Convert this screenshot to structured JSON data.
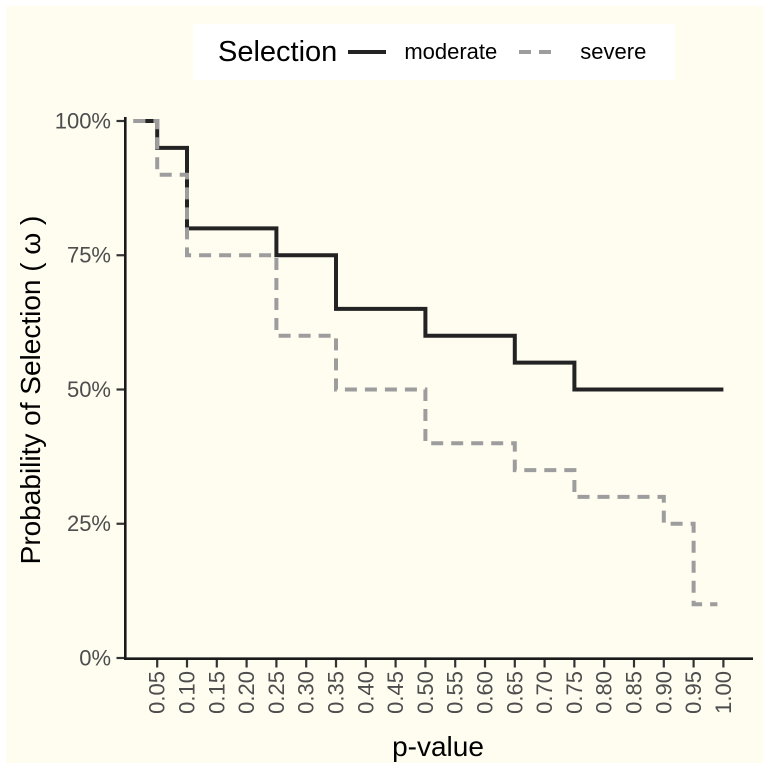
{
  "figure": {
    "page_background": "#FFFFFF",
    "plot_background": "#FFFCF0",
    "legend_background": "#FFFFFF",
    "axis_line_color": "#1A1A1A",
    "tick_color": "#333333",
    "tick_label_color": "#4D4D4D"
  },
  "legend": {
    "title": "Selection",
    "items": [
      {
        "label": "moderate",
        "style": "solid",
        "color": "#232323"
      },
      {
        "label": "severe",
        "style": "dashed",
        "color": "#9D9D9D"
      }
    ]
  },
  "axes": {
    "x_title": "p-value",
    "y_title": "Probability of Selection ( ω )"
  },
  "chart_data": {
    "type": "line",
    "subtype": "step",
    "title": "",
    "xlabel": "p-value",
    "ylabel": "Probability of Selection ( ω )",
    "legend_title": "Selection",
    "legend_position": "top",
    "grid": false,
    "xlim": [
      0.01,
      1.0
    ],
    "ylim": [
      0,
      1
    ],
    "x_ticks": [
      {
        "v": 0.05,
        "label": "0.05"
      },
      {
        "v": 0.1,
        "label": "0.10"
      },
      {
        "v": 0.15,
        "label": "0.15"
      },
      {
        "v": 0.2,
        "label": "0.20"
      },
      {
        "v": 0.25,
        "label": "0.25"
      },
      {
        "v": 0.3,
        "label": "0.30"
      },
      {
        "v": 0.35,
        "label": "0.35"
      },
      {
        "v": 0.4,
        "label": "0.40"
      },
      {
        "v": 0.45,
        "label": "0.45"
      },
      {
        "v": 0.5,
        "label": "0.50"
      },
      {
        "v": 0.55,
        "label": "0.55"
      },
      {
        "v": 0.6,
        "label": "0.60"
      },
      {
        "v": 0.65,
        "label": "0.65"
      },
      {
        "v": 0.7,
        "label": "0.70"
      },
      {
        "v": 0.75,
        "label": "0.75"
      },
      {
        "v": 0.8,
        "label": "0.80"
      },
      {
        "v": 0.85,
        "label": "0.85"
      },
      {
        "v": 0.9,
        "label": "0.90"
      },
      {
        "v": 0.95,
        "label": "0.95"
      },
      {
        "v": 1.0,
        "label": "1.00"
      }
    ],
    "y_ticks": [
      {
        "v": 0.0,
        "label": "0%"
      },
      {
        "v": 0.25,
        "label": "25%"
      },
      {
        "v": 0.5,
        "label": "50%"
      },
      {
        "v": 0.75,
        "label": "75%"
      },
      {
        "v": 1.0,
        "label": "100%"
      }
    ],
    "series": [
      {
        "name": "moderate",
        "line": "solid",
        "color": "#232323",
        "steps": [
          [
            0.01,
            1.0
          ],
          [
            0.05,
            0.95
          ],
          [
            0.1,
            0.8
          ],
          [
            0.25,
            0.75
          ],
          [
            0.35,
            0.65
          ],
          [
            0.5,
            0.6
          ],
          [
            0.65,
            0.55
          ],
          [
            0.75,
            0.5
          ]
        ],
        "end_x": 1.0
      },
      {
        "name": "severe",
        "line": "dashed",
        "color": "#9D9D9D",
        "steps": [
          [
            0.01,
            1.0
          ],
          [
            0.05,
            0.9
          ],
          [
            0.1,
            0.75
          ],
          [
            0.25,
            0.6
          ],
          [
            0.35,
            0.5
          ],
          [
            0.5,
            0.4
          ],
          [
            0.65,
            0.35
          ],
          [
            0.75,
            0.3
          ],
          [
            0.9,
            0.25
          ],
          [
            0.95,
            0.1
          ]
        ],
        "end_x": 0.99
      }
    ]
  }
}
